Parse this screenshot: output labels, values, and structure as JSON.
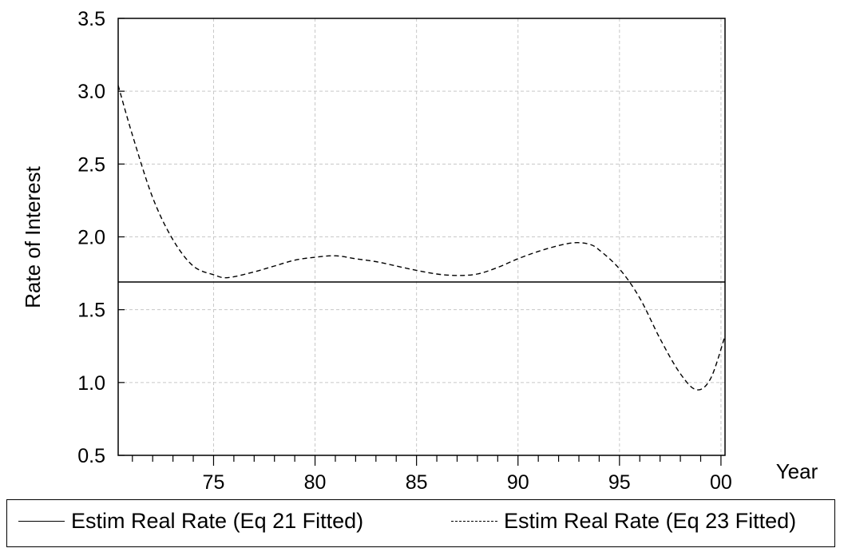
{
  "chart_data": {
    "type": "line",
    "xlabel": "Year",
    "ylabel": "Rate of Interest",
    "xlim": [
      1970.3,
      2000.2
    ],
    "ylim": [
      0.5,
      3.5
    ],
    "x_ticks": [
      1975,
      1980,
      1985,
      1990,
      1995,
      2000
    ],
    "x_tick_labels": [
      "75",
      "80",
      "85",
      "90",
      "95",
      "00"
    ],
    "y_ticks": [
      0.5,
      1.0,
      1.5,
      2.0,
      2.5,
      3.0,
      3.5
    ],
    "y_tick_labels": [
      "0.5",
      "1.0",
      "1.5",
      "2.0",
      "2.5",
      "3.0",
      "3.5"
    ],
    "grid": true,
    "legend_position": "bottom",
    "series": [
      {
        "name": "Estim Real Rate (Eq 21 Fitted)",
        "style": "solid",
        "x": [
          1970.3,
          2000.2
        ],
        "values": [
          1.69,
          1.69
        ]
      },
      {
        "name": "Estim Real Rate (Eq 23 Fitted)",
        "style": "dashed",
        "x": [
          1970.3,
          1971,
          1972,
          1973,
          1974,
          1975,
          1975.7,
          1977,
          1978,
          1979,
          1980,
          1981,
          1982,
          1983,
          1984,
          1985,
          1986,
          1987,
          1988,
          1989,
          1990,
          1991,
          1992,
          1992.8,
          1993.5,
          1994,
          1995,
          1996,
          1997,
          1998,
          1998.8,
          1999.5,
          2000.2
        ],
        "values": [
          3.04,
          2.7,
          2.27,
          1.98,
          1.8,
          1.74,
          1.72,
          1.76,
          1.8,
          1.84,
          1.86,
          1.87,
          1.85,
          1.83,
          1.8,
          1.77,
          1.745,
          1.735,
          1.745,
          1.79,
          1.85,
          1.9,
          1.94,
          1.96,
          1.95,
          1.91,
          1.78,
          1.58,
          1.3,
          1.06,
          0.95,
          1.03,
          1.32
        ]
      }
    ]
  },
  "legend": {
    "item1_label": "Estim Real Rate (Eq 21 Fitted)",
    "item2_label": "Estim Real Rate (Eq 23 Fitted)"
  },
  "colors": {
    "line": "#000000",
    "grid": "#c8c8c8"
  }
}
